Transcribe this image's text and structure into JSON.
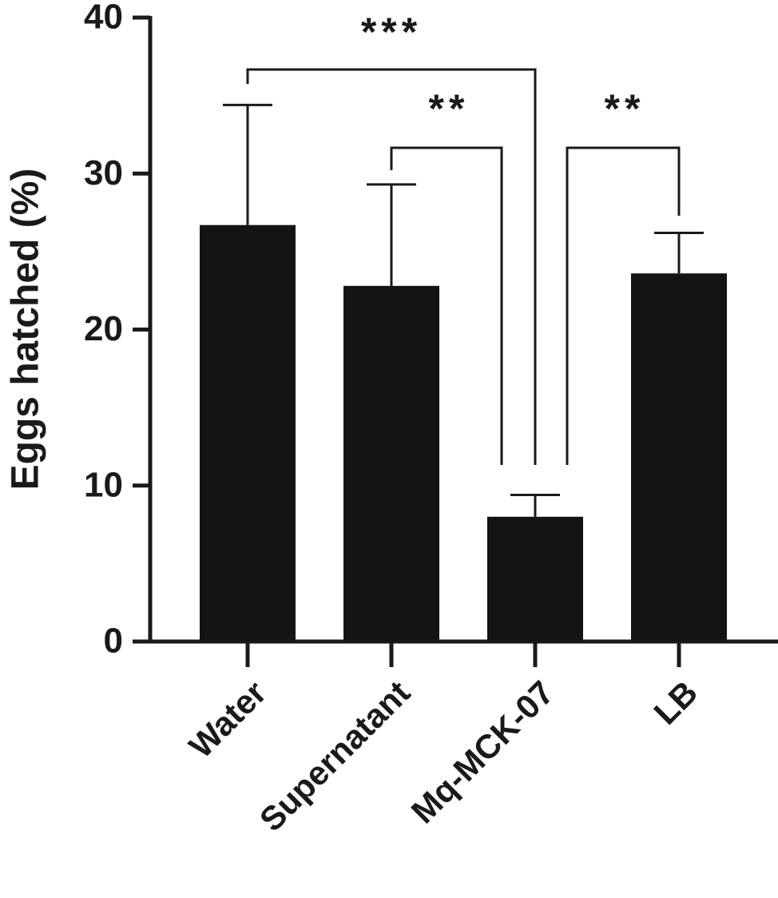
{
  "chart_data": {
    "type": "bar",
    "y_label": "Eggs hatched (%)",
    "categories": [
      "Water",
      "Supernatant",
      "Mq-MCK-07",
      "LB"
    ],
    "values": [
      26.7,
      22.8,
      8.0,
      23.6
    ],
    "errors": [
      7.7,
      6.5,
      1.4,
      2.6
    ],
    "color": "#141414",
    "ylim": [
      0,
      40
    ],
    "yticks": [
      0,
      10,
      20,
      30,
      40
    ],
    "grid": false,
    "annotations": [
      "***",
      "**",
      "**"
    ]
  }
}
